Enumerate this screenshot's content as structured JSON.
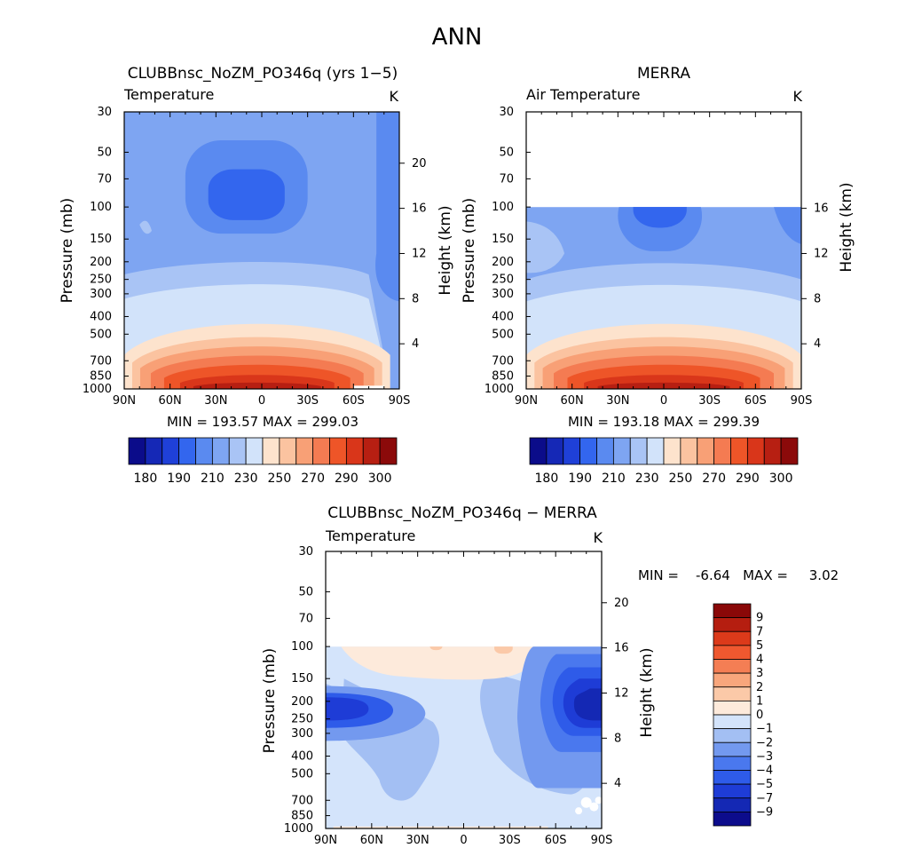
{
  "page_title": "ANN",
  "y_ticks": [
    {
      "p": 30,
      "label": "30"
    },
    {
      "p": 50,
      "label": "50"
    },
    {
      "p": 70,
      "label": "70"
    },
    {
      "p": 100,
      "label": "100"
    },
    {
      "p": 150,
      "label": "150"
    },
    {
      "p": 200,
      "label": "200"
    },
    {
      "p": 250,
      "label": "250"
    },
    {
      "p": 300,
      "label": "300"
    },
    {
      "p": 400,
      "label": "400"
    },
    {
      "p": 500,
      "label": "500"
    },
    {
      "p": 700,
      "label": "700"
    },
    {
      "p": 850,
      "label": "850"
    },
    {
      "p": 1000,
      "label": "1000"
    }
  ],
  "x_ticks": [
    {
      "lat": 90,
      "label": "90N"
    },
    {
      "lat": 60,
      "label": "60N"
    },
    {
      "lat": 30,
      "label": "30N"
    },
    {
      "lat": 0,
      "label": "0"
    },
    {
      "lat": -30,
      "label": "30S"
    },
    {
      "lat": -60,
      "label": "60S"
    },
    {
      "lat": -90,
      "label": "90S"
    }
  ],
  "colors": {
    "temp_scale": [
      "#0b0c8a",
      "#1528b6",
      "#1f40d8",
      "#3366ee",
      "#5a8af0",
      "#7ea5f2",
      "#a9c4f5",
      "#d2e3fa",
      "#fde3cd",
      "#fbc3a0",
      "#f8a076",
      "#f47b52",
      "#ee5528",
      "#d9361a",
      "#b71f12",
      "#8b0a0a"
    ],
    "diff_scale": [
      "#0c0c8c",
      "#1428b4",
      "#1e3cd6",
      "#2e5be9",
      "#4a78ee",
      "#7399ef",
      "#a3bff3",
      "#d4e4fb",
      "#fdeadb",
      "#fbc9a8",
      "#f8a67c",
      "#f47e54",
      "#ef582f",
      "#dc3a1a",
      "#b51e10",
      "#8a0808"
    ]
  },
  "chart_data": [
    {
      "type": "contour",
      "title": "CLUBBnsc_NoZM_PO346q (yrs 1−5)",
      "variable_label": "Temperature",
      "units": "K",
      "xlabel": "",
      "ylabel": "Pressure (mb)",
      "y2label": "Height (km)",
      "x_range": [
        90,
        -90
      ],
      "y_range_mb": [
        1000,
        30
      ],
      "y2_ticks_km": [
        4,
        8,
        12,
        16,
        20
      ],
      "stats_text": "MIN = 193.57   MAX = 299.03",
      "colorbar": {
        "orientation": "horizontal",
        "labels": [
          "180",
          "190",
          "210",
          "230",
          "250",
          "270",
          "290",
          "300"
        ]
      }
    },
    {
      "type": "contour",
      "title": "MERRA",
      "variable_label": "Air Temperature",
      "units": "K",
      "xlabel": "",
      "ylabel": "Pressure (mb)",
      "y2label": "Height (km)",
      "x_range": [
        90,
        -90
      ],
      "y_range_mb": [
        1000,
        30
      ],
      "data_top_mb": 100,
      "y2_ticks_km": [
        4,
        8,
        12,
        16
      ],
      "stats_text": "MIN = 193.18   MAX = 299.39",
      "colorbar": {
        "orientation": "horizontal",
        "labels": [
          "180",
          "190",
          "210",
          "230",
          "250",
          "270",
          "290",
          "300"
        ]
      }
    },
    {
      "type": "contour",
      "title": "CLUBBnsc_NoZM_PO346q − MERRA",
      "variable_label": "Temperature",
      "units": "K",
      "xlabel": "",
      "ylabel": "Pressure (mb)",
      "y2label": "Height (km)",
      "x_range": [
        90,
        -90
      ],
      "y_range_mb": [
        1000,
        30
      ],
      "data_top_mb": 100,
      "y2_ticks_km": [
        4,
        8,
        12,
        16,
        20
      ],
      "stats_text": "MIN =    -6.64   MAX =     3.02",
      "colorbar": {
        "orientation": "vertical",
        "labels": [
          "9",
          "7",
          "5",
          "4",
          "3",
          "2",
          "1",
          "0",
          "−1",
          "−2",
          "−3",
          "−4",
          "−5",
          "−7",
          "−9"
        ]
      }
    }
  ]
}
